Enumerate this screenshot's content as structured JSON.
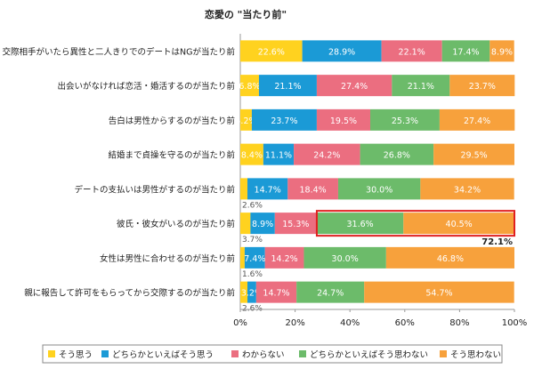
{
  "chart_data": {
    "type": "bar",
    "orientation": "horizontal-stacked-100",
    "title": "恋愛の \"当たり前\"",
    "categories": [
      "交際相手がいたら異性と二人きりでのデートはNGが当たり前",
      "出会いがなければ恋活・婚活するのが当たり前",
      "告白は男性からするのが当たり前",
      "結婚まで貞操を守るのが当たり前",
      "デートの支払いは男性がするのが当たり前",
      "彼氏・彼女がいるのが当たり前",
      "女性は男性に合わせるのが当たり前",
      "親に報告して許可をもらってから交際するのが当たり前"
    ],
    "series": [
      {
        "name": "そう思う",
        "color": "#FFD21F",
        "values": [
          22.6,
          6.8,
          4.2,
          8.4,
          2.6,
          3.7,
          1.6,
          2.6
        ]
      },
      {
        "name": "どちらかといえばそう思う",
        "color": "#1B9AD6",
        "values": [
          28.9,
          21.1,
          23.7,
          11.1,
          14.7,
          8.9,
          7.4,
          3.2
        ]
      },
      {
        "name": "わからない",
        "color": "#EB6E80",
        "values": [
          22.1,
          27.4,
          19.5,
          24.2,
          18.4,
          15.3,
          14.2,
          14.7
        ]
      },
      {
        "name": "どちらかといえばそう思わない",
        "color": "#6CBB6A",
        "values": [
          17.4,
          21.1,
          25.3,
          26.8,
          30.0,
          31.6,
          30.0,
          24.7
        ]
      },
      {
        "name": "そう思わない",
        "color": "#F7A13C",
        "values": [
          8.9,
          23.7,
          27.4,
          29.5,
          34.2,
          40.5,
          46.8,
          54.7
        ]
      }
    ],
    "value_labels": [
      [
        "22.6%",
        "28.9%",
        "22.1%",
        "17.4%",
        "8.9%"
      ],
      [
        "6.8%",
        "21.1%",
        "27.4%",
        "21.1%",
        "23.7%"
      ],
      [
        "4.2%",
        "23.7%",
        "19.5%",
        "25.3%",
        "27.4%"
      ],
      [
        "8.4%",
        "11.1%",
        "24.2%",
        "26.8%",
        "29.5%"
      ],
      [
        "2.6%",
        "14.7%",
        "18.4%",
        "30.0%",
        "34.2%"
      ],
      [
        "3.7%",
        "8.9%",
        "15.3%",
        "31.6%",
        "40.5%"
      ],
      [
        "1.6%",
        "7.4%",
        "14.2%",
        "30.0%",
        "46.8%"
      ],
      [
        "2.6%",
        "3.2%",
        "14.7%",
        "24.7%",
        "54.7%"
      ]
    ],
    "x_ticks": [
      "0%",
      "20%",
      "40%",
      "60%",
      "80%",
      "100%"
    ],
    "xlim": [
      0,
      100
    ],
    "highlight": {
      "category_index": 5,
      "series_from": 3,
      "series_to": 4,
      "label": "72.1%",
      "color": "#E02020"
    },
    "legend_position": "bottom",
    "grid": false
  }
}
